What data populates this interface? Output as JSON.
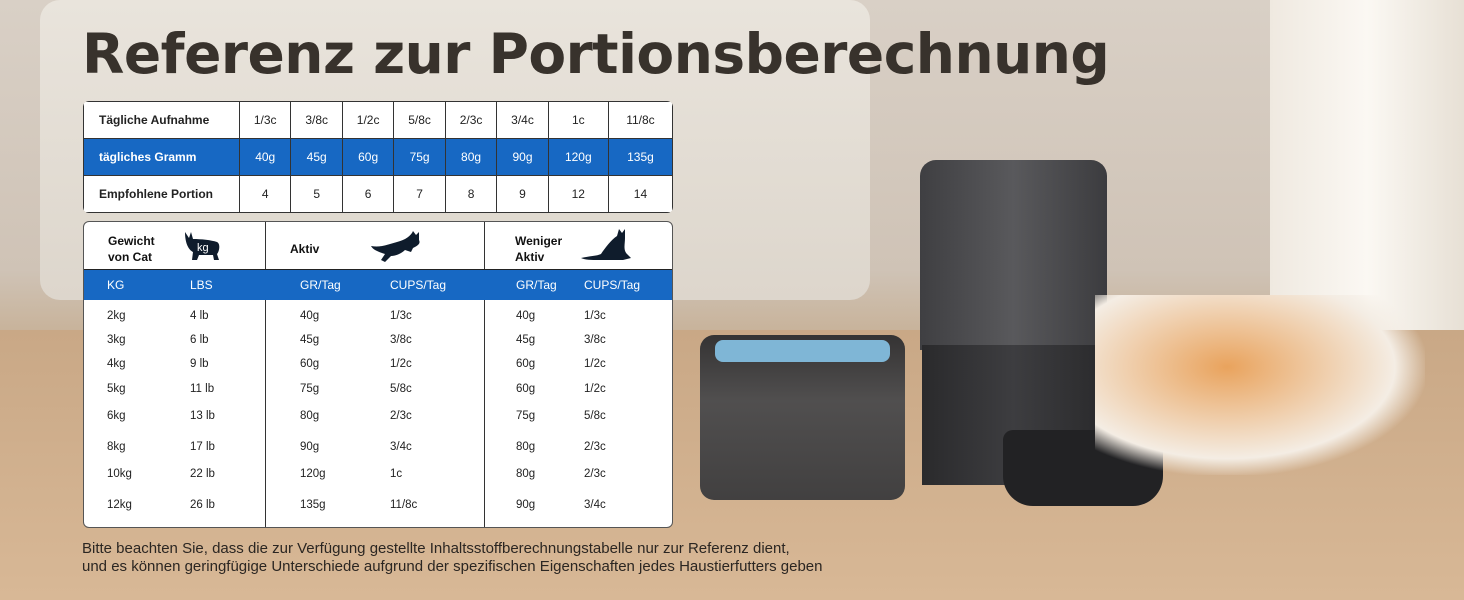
{
  "title": "Referenz zur Portionsberechnung",
  "portion_table": {
    "rows": [
      {
        "label": "Tägliche Aufnahme",
        "values": [
          "1/3c",
          "3/8c",
          "1/2c",
          "5/8c",
          "2/3c",
          "3/4c",
          "1c",
          "11/8c"
        ]
      },
      {
        "label": "tägliches Gramm",
        "values": [
          "40g",
          "45g",
          "60g",
          "75g",
          "80g",
          "90g",
          "120g",
          "135g"
        ]
      },
      {
        "label": "Empfohlene Portion",
        "values": [
          "4",
          "5",
          "6",
          "7",
          "8",
          "9",
          "12",
          "14"
        ]
      }
    ]
  },
  "weight_table": {
    "headers": {
      "weight": "Gewicht\nvon Cat",
      "active": "Aktiv",
      "less_active": "Weniger\nAktiv",
      "kg_badge": "kg"
    },
    "subheaders": [
      "KG",
      "LBS",
      "GR/Tag",
      "CUPS/Tag",
      "GR/Tag",
      "CUPS/Tag"
    ],
    "rows": [
      [
        "2kg",
        "4 lb",
        "40g",
        "1/3c",
        "40g",
        "1/3c"
      ],
      [
        "3kg",
        "6 lb",
        "45g",
        "3/8c",
        "45g",
        "3/8c"
      ],
      [
        "4kg",
        "9 lb",
        "60g",
        "1/2c",
        "60g",
        "1/2c"
      ],
      [
        "5kg",
        "11 lb",
        "75g",
        "5/8c",
        "60g",
        "1/2c"
      ],
      [
        "6kg",
        "13 lb",
        "80g",
        "2/3c",
        "75g",
        "5/8c"
      ],
      [
        "8kg",
        "17 lb",
        "90g",
        "3/4c",
        "80g",
        "2/3c"
      ],
      [
        "10kg",
        "22 lb",
        "120g",
        "1c",
        "80g",
        "2/3c"
      ],
      [
        "12kg",
        "26 lb",
        "135g",
        "11/8c",
        "90g",
        "3/4c"
      ]
    ],
    "icons": [
      "cat-walking-icon",
      "cat-jumping-icon",
      "cat-lying-icon"
    ]
  },
  "note": {
    "line1": "Bitte beachten Sie, dass die zur Verfügung gestellte Inhaltsstoffberechnungstabelle nur zur Referenz dient,",
    "line2": "und es können geringfügige Unterschiede aufgrund der spezifischen Eigenschaften jedes Haustierfutters geben"
  },
  "colors": {
    "accent": "#1768c3",
    "title": "#38322c"
  }
}
